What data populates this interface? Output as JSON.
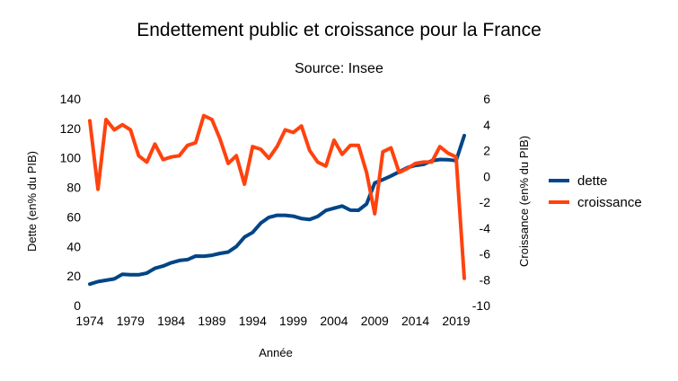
{
  "chart_data": {
    "type": "line",
    "title": "Endettement public et croissance pour la France",
    "subtitle": "Source: Insee",
    "xlabel": "Année",
    "ylabel": "Dette (en% du PIB)",
    "y2label": "Croissance (en% du PIB)",
    "xlim": [
      1974,
      2020
    ],
    "ylim": [
      0,
      140
    ],
    "y2lim": [
      -10,
      6
    ],
    "x_ticks": [
      1974,
      1979,
      1984,
      1989,
      1994,
      1999,
      2004,
      2009,
      2014,
      2019
    ],
    "y_ticks": [
      0,
      20,
      40,
      60,
      80,
      100,
      120,
      140
    ],
    "y2_ticks": [
      -10,
      -8,
      -6,
      -4,
      -2,
      0,
      2,
      4,
      6
    ],
    "grid": false,
    "legend_position": "right",
    "x": [
      1974,
      1975,
      1976,
      1977,
      1978,
      1979,
      1980,
      1981,
      1982,
      1983,
      1984,
      1985,
      1986,
      1987,
      1988,
      1989,
      1990,
      1991,
      1992,
      1993,
      1994,
      1995,
      1996,
      1997,
      1998,
      1999,
      2000,
      2001,
      2002,
      2003,
      2004,
      2005,
      2006,
      2007,
      2008,
      2009,
      2010,
      2011,
      2012,
      2013,
      2014,
      2015,
      2016,
      2017,
      2018,
      2019,
      2020
    ],
    "series": [
      {
        "name": "dette",
        "axis": "left",
        "color": "#004586",
        "values": [
          14.5,
          16.2,
          17.1,
          18.0,
          21.2,
          20.8,
          20.8,
          22.0,
          25.2,
          26.7,
          29.0,
          30.5,
          31.1,
          33.5,
          33.4,
          34.0,
          35.3,
          36.2,
          40.0,
          46.3,
          49.5,
          55.8,
          59.7,
          61.1,
          61.1,
          60.5,
          58.9,
          58.3,
          60.3,
          64.4,
          65.9,
          67.4,
          64.6,
          64.5,
          68.8,
          83.0,
          85.3,
          87.8,
          90.6,
          93.4,
          94.9,
          95.6,
          98.0,
          98.9,
          98.8,
          98.1,
          115.1
        ]
      },
      {
        "name": "croissance",
        "axis": "right",
        "color": "#ff420e",
        "values": [
          4.3,
          -1.0,
          4.4,
          3.6,
          4.0,
          3.6,
          1.6,
          1.1,
          2.5,
          1.3,
          1.5,
          1.6,
          2.4,
          2.6,
          4.7,
          4.4,
          2.9,
          1.0,
          1.6,
          -0.6,
          2.3,
          2.1,
          1.4,
          2.3,
          3.6,
          3.4,
          3.9,
          2.0,
          1.1,
          0.8,
          2.8,
          1.7,
          2.4,
          2.4,
          0.3,
          -2.9,
          1.9,
          2.2,
          0.3,
          0.6,
          1.0,
          1.1,
          1.1,
          2.3,
          1.8,
          1.5,
          -7.9
        ]
      }
    ]
  }
}
